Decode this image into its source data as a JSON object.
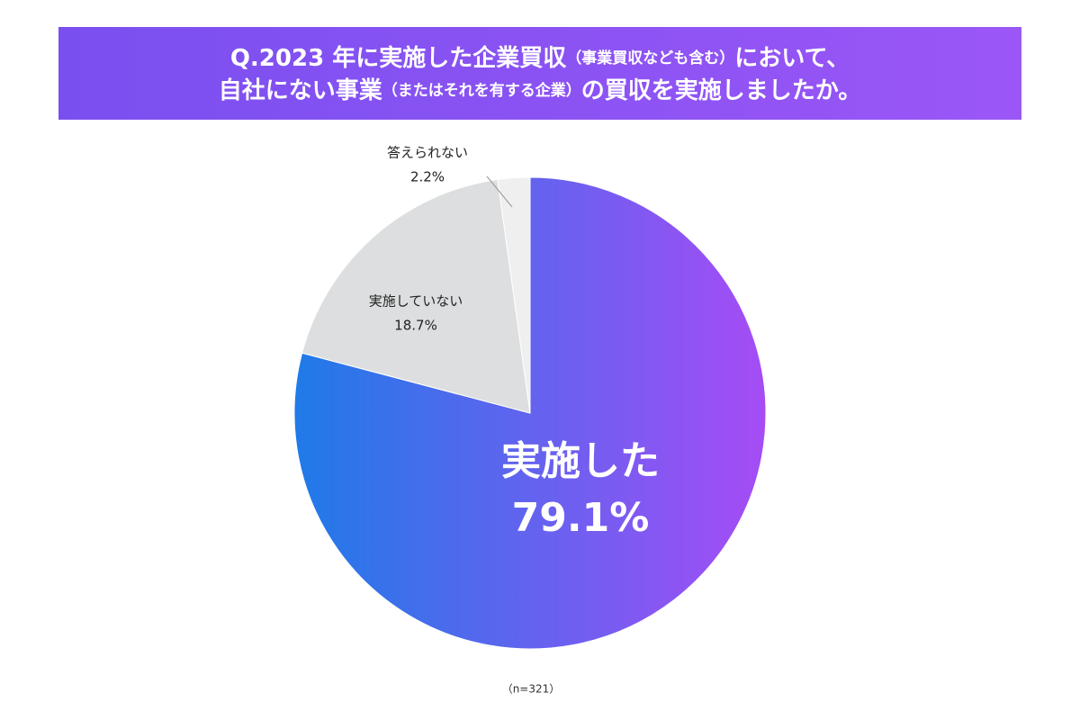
{
  "chart_data": {
    "type": "pie",
    "title": [
      "Q.2023 年に実施した企業買収",
      "（事業買収なども含む）",
      "において、",
      "自社にない事業",
      "（またはそれを有する企業）",
      "の買収を実施しましたか。"
    ],
    "categories": [
      "実施した",
      "実施していない",
      "答えられない"
    ],
    "values": [
      79.1,
      18.7,
      2.2
    ],
    "value_labels": [
      "79.1%",
      "18.7%",
      "2.2%"
    ],
    "colors": [
      [
        "#1f7ae8",
        "#a64cf5"
      ],
      "#dcdedf",
      "#efefef"
    ],
    "note": "（n=321）"
  }
}
